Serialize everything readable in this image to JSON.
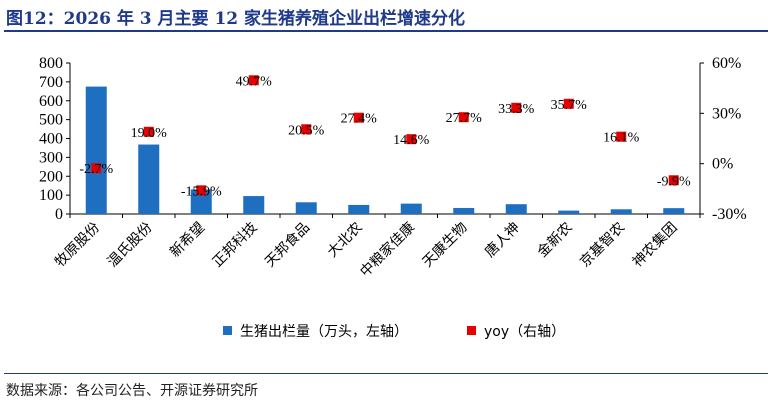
{
  "figure": {
    "title": "图12：2026 年 3 月主要 12 家生猪养殖企业出栏增速分化",
    "source": "数据来源：各公司公告、开源证券研究所"
  },
  "chart_data": {
    "type": "bar",
    "categories": [
      "牧原股份",
      "温氏股份",
      "新希望",
      "正邦科技",
      "天邦食品",
      "大北农",
      "中粮家佳康",
      "天康生物",
      "唐人神",
      "金新农",
      "京基智农",
      "神农集团"
    ],
    "series": [
      {
        "name": "生猪出栏量（万头，左轴）",
        "type": "bar",
        "axis": "left",
        "color": "#1f6fc0",
        "values": [
          675,
          368,
          130,
          95,
          62,
          48,
          55,
          32,
          52,
          18,
          25,
          31
        ]
      },
      {
        "name": "yoy（右轴）",
        "type": "scatter",
        "axis": "right",
        "color": "#e60000",
        "values": [
          -2.7,
          19.0,
          -15.9,
          49.7,
          20.5,
          27.4,
          14.6,
          27.7,
          33.3,
          35.7,
          16.1,
          -9.9
        ],
        "labels": [
          "-2.7%",
          "19.0%",
          "-15.9%",
          "49.7%",
          "20.5%",
          "27.4%",
          "14.6%",
          "27.7%",
          "33.3%",
          "35.7%",
          "16.1%",
          "-9.9%"
        ]
      }
    ],
    "left_axis": {
      "ylim": [
        0,
        800
      ],
      "ticks": [
        0,
        100,
        200,
        300,
        400,
        500,
        600,
        700,
        800
      ],
      "tick_labels": [
        "0",
        "100",
        "200",
        "300",
        "400",
        "500",
        "600",
        "700",
        "800"
      ]
    },
    "right_axis": {
      "ylim": [
        -30,
        60
      ],
      "ticks": [
        -30,
        0,
        30,
        60
      ],
      "tick_labels": [
        "-30%",
        "0%",
        "30%",
        "60%"
      ]
    },
    "grid": false,
    "legend_position": "bottom"
  }
}
